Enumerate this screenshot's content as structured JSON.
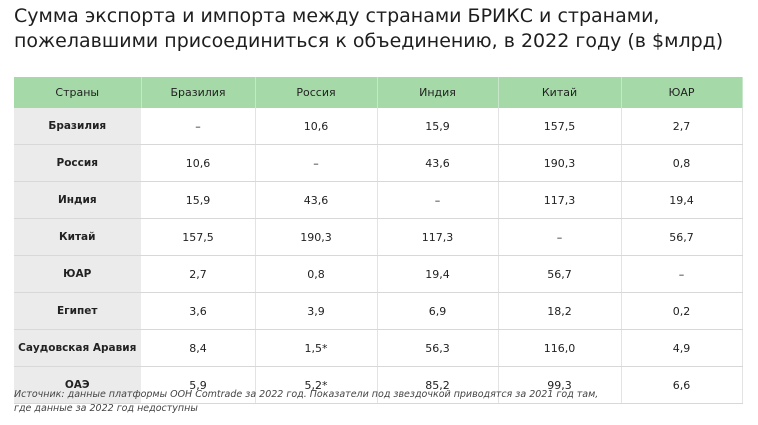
{
  "header": {
    "title_lines": [
      "Сумма экспорта и импорта между странами БРИКС и странами,",
      "пожелавшими присоединиться к объединению, в 2022 году (в $млрд)"
    ]
  },
  "table": {
    "columns": [
      "Страны",
      "Бразилия",
      "Россия",
      "Индия",
      "Китай",
      "ЮАР"
    ],
    "rows": [
      [
        "Бразилия",
        "–",
        "10,6",
        "15,9",
        "157,5",
        "2,7"
      ],
      [
        "Россия",
        "10,6",
        "–",
        "43,6",
        "190,3",
        "0,8"
      ],
      [
        "Индия",
        "15,9",
        "43,6",
        "–",
        "117,3",
        "19,4"
      ],
      [
        "Китай",
        "157,5",
        "190,3",
        "117,3",
        "–",
        "56,7"
      ],
      [
        "ЮАР",
        "2,7",
        "0,8",
        "19,4",
        "56,7",
        "–"
      ],
      [
        "Египет",
        "3,6",
        "3,9",
        "6,9",
        "18,2",
        "0,2"
      ],
      [
        "Саудовская Аравия",
        "8,4",
        "1,5*",
        "56,3",
        "116,0",
        "4,9"
      ],
      [
        "ОАЭ",
        "5,9",
        "5,2*",
        "85,2",
        "99,3",
        "6,6"
      ]
    ]
  },
  "footnote": {
    "lines": [
      "Источник: данные платформы ООН Comtrade за 2022 год. Показатели под звездочкой приводятся за 2021 год там,",
      "где данные за 2022 год недоступны"
    ]
  }
}
